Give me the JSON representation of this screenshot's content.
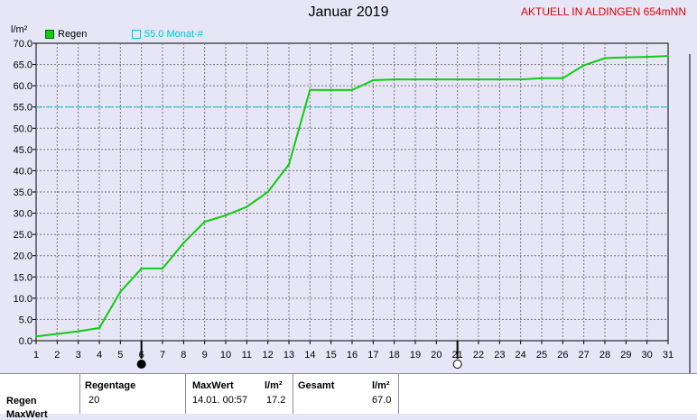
{
  "header": {
    "title": "Januar 2019",
    "status": "AKTUELL IN ALDINGEN 654mNN"
  },
  "colors": {
    "rain": "#11cc11",
    "average": "#00c8d8",
    "plot_bg": "#e6e6f7",
    "grid": "#777777"
  },
  "chart_data": {
    "type": "line",
    "title": "Januar 2019",
    "ylabel": "l/m²",
    "ylim": [
      0,
      70
    ],
    "xlim": [
      1,
      31
    ],
    "y_ticks": [
      "0.0",
      "5.0",
      "10.0",
      "15.0",
      "20.0",
      "25.0",
      "30.0",
      "35.0",
      "40.0",
      "45.0",
      "50.0",
      "55.0",
      "60.0",
      "65.0",
      "70.0"
    ],
    "x_ticks": [
      "1",
      "2",
      "3",
      "4",
      "5",
      "6",
      "7",
      "8",
      "9",
      "10",
      "11",
      "12",
      "13",
      "14",
      "15",
      "16",
      "17",
      "18",
      "19",
      "20",
      "21",
      "22",
      "23",
      "24",
      "25",
      "26",
      "27",
      "28",
      "29",
      "30",
      "31"
    ],
    "grid": true,
    "legend_position": "top-left",
    "series": [
      {
        "name": "Regen",
        "color": "#11cc11",
        "x": [
          1,
          2,
          3,
          4,
          5,
          6,
          7,
          8,
          9,
          10,
          11,
          12,
          13,
          14,
          15,
          16,
          17,
          18,
          19,
          20,
          21,
          22,
          23,
          24,
          25,
          26,
          27,
          28,
          29,
          30,
          31
        ],
        "y": [
          1.0,
          1.6,
          2.2,
          3.0,
          11.5,
          17.0,
          17.0,
          23.0,
          28.0,
          29.5,
          31.5,
          35.0,
          41.5,
          59.0,
          59.0,
          59.0,
          61.3,
          61.5,
          61.5,
          61.5,
          61.5,
          61.5,
          61.5,
          61.5,
          61.8,
          61.8,
          64.8,
          66.5,
          66.7,
          66.8,
          67.0
        ]
      }
    ],
    "reference_line": {
      "label": "55.0 Monat-#",
      "value": 55.0,
      "color": "#00c8d8"
    },
    "moon_markers": [
      {
        "day": 6,
        "phase": "new-moon"
      },
      {
        "day": 21,
        "phase": "full-moon"
      }
    ]
  },
  "table": {
    "row_label": "Regen",
    "row_label_2": "MaxWert",
    "regentage_header": "Regentage",
    "regentage_value": "20",
    "maxwert_header": "MaxWert",
    "maxwert_unit": "l/m²",
    "maxwert_time": "14.01.  00:57",
    "maxwert_value": "17.2",
    "gesamt_header": "Gesamt",
    "gesamt_unit": "l/m²",
    "gesamt_value": "67.0"
  }
}
